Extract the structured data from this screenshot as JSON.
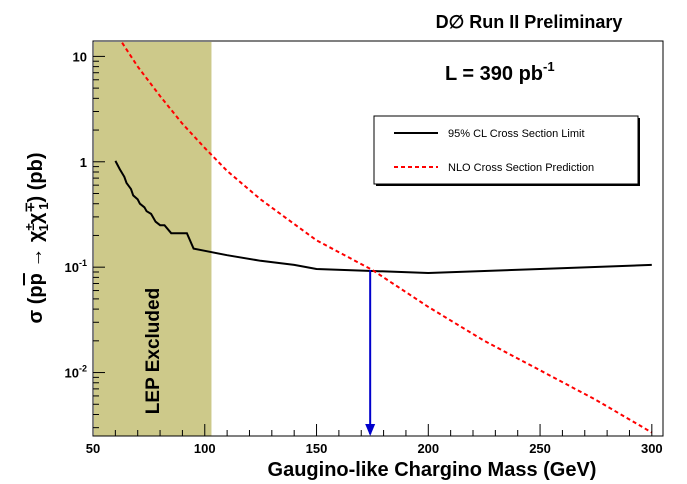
{
  "header_title": "D∅ Run II Preliminary",
  "luminosity": {
    "main": "L = 390 pb",
    "sup": "-1"
  },
  "chart_data": {
    "type": "line",
    "xlabel": "Gaugino-like Chargino Mass (GeV)",
    "ylabel_parts": [
      "σ (p",
      "p",
      " → χ",
      "±",
      "1",
      "χ",
      "∓",
      "1",
      ") (pb)"
    ],
    "xlim": [
      50,
      305
    ],
    "ylim": [
      0.0025,
      14
    ],
    "yscale": "log",
    "x_ticks": [
      {
        "value": 50,
        "label": "50"
      },
      {
        "value": 100,
        "label": "100"
      },
      {
        "value": 150,
        "label": "150"
      },
      {
        "value": 200,
        "label": "200"
      },
      {
        "value": 250,
        "label": "250"
      },
      {
        "value": 300,
        "label": "300"
      }
    ],
    "y_ticks": [
      {
        "value": 10,
        "label": "10",
        "sup": ""
      },
      {
        "value": 1,
        "label": "1",
        "sup": ""
      },
      {
        "value": 0.1,
        "label": "10",
        "sup": "-1"
      },
      {
        "value": 0.01,
        "label": "10",
        "sup": "-2"
      }
    ],
    "excluded_region": {
      "x_min": 50,
      "x_max": 103,
      "label": "LEP Excluded",
      "color": "#cdc98a"
    },
    "series": [
      {
        "name": "95% CL Cross Section Limit",
        "color": "#000000",
        "dash": "solid",
        "x": [
          60,
          62,
          64,
          65,
          67,
          68,
          70,
          71,
          73,
          74,
          76,
          78,
          80,
          82,
          85,
          88,
          92,
          95,
          100,
          110,
          125,
          140,
          150,
          175,
          200,
          250,
          300
        ],
        "y": [
          1.02,
          0.85,
          0.72,
          0.63,
          0.55,
          0.48,
          0.44,
          0.4,
          0.37,
          0.34,
          0.32,
          0.27,
          0.25,
          0.25,
          0.21,
          0.21,
          0.21,
          0.15,
          0.143,
          0.13,
          0.115,
          0.105,
          0.096,
          0.092,
          0.088,
          0.096,
          0.105
        ]
      },
      {
        "name": "NLO Cross Section Prediction",
        "color": "#ff0000",
        "dash": "dashed",
        "x": [
          63,
          70,
          80,
          90,
          100,
          110,
          125,
          150,
          175,
          200,
          225,
          250,
          275,
          300
        ],
        "y": [
          13.5,
          8.0,
          4.2,
          2.3,
          1.35,
          0.82,
          0.44,
          0.18,
          0.094,
          0.042,
          0.02,
          0.0105,
          0.0055,
          0.0027
        ]
      }
    ],
    "crossing_arrow": {
      "x": 174,
      "y_from": 0.094,
      "y_to": 0.0025,
      "color": "#0000cc"
    },
    "legend_position": "top-right"
  }
}
